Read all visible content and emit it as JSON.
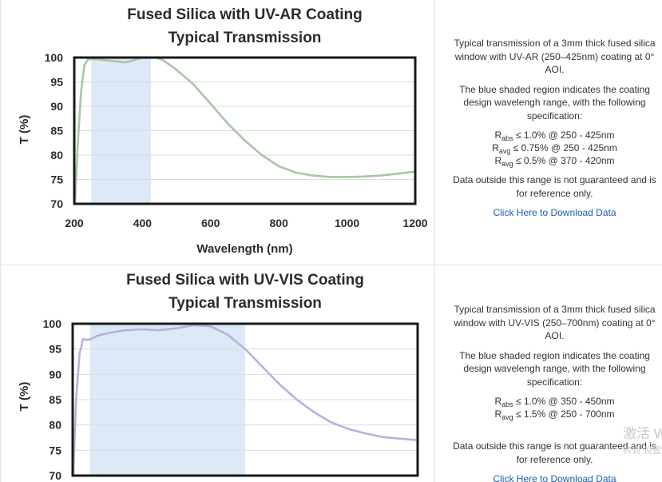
{
  "colors": {
    "shade": "#dce9f6",
    "curve_uvar": "#a9c6a5",
    "curve_uvvis": "#b7b2da",
    "grid": "#dcdcdc",
    "frame": "#1a1a1a",
    "link": "#1a5fa8"
  },
  "panels": [
    {
      "text": {
        "intro": "Typical transmission of a 3mm thick fused silica window with UV-AR (250–425nm) coating at 0° AOI.",
        "shade_note": "The blue shaded region indicates the coating design wavelengh range, with the following specification:",
        "specs": [
          {
            "sym": "R",
            "sub": "abs",
            "text": " ≤ 1.0% @ 250 - 425nm"
          },
          {
            "sym": "R",
            "sub": "avg",
            "text": " ≤ 0.75% @ 250 - 425nm"
          },
          {
            "sym": "R",
            "sub": "avg",
            "text": " ≤ 0.5% @ 370 - 420nm"
          }
        ],
        "disclaimer": "Data outside this range is not guaranteed and is for reference only.",
        "download": "Click Here to Download Data"
      }
    },
    {
      "text": {
        "intro": "Typical transmission of a 3mm thick fused silica window with UV-VIS (250–700nm) coating at 0° AOI.",
        "shade_note": "The blue shaded region indicates the coating design wavelengh range, with the following specification:",
        "specs": [
          {
            "sym": "R",
            "sub": "abs",
            "text": " ≤ 1.0% @ 350 - 450nm"
          },
          {
            "sym": "R",
            "sub": "avg",
            "text": " ≤ 1.5% @ 250 - 700nm"
          }
        ],
        "disclaimer": "Data outside this range is not guaranteed and is for reference only.",
        "download": "Click Here to Download Data"
      }
    }
  ],
  "watermark": {
    "line1": "激活 W",
    "line2": "转到\"设置\"以"
  },
  "chart_data": [
    {
      "type": "line",
      "title": [
        "Fused Silica with UV-AR Coating",
        "Typical Transmission"
      ],
      "xlabel": "Wavelength (nm)",
      "ylabel": "T (%)",
      "xlim": [
        200,
        1200
      ],
      "ylim": [
        70,
        100
      ],
      "xticks": [
        200,
        400,
        600,
        800,
        1000,
        1200
      ],
      "yticks": [
        70,
        75,
        80,
        85,
        90,
        95,
        100
      ],
      "grid": true,
      "shaded_range": [
        250,
        425
      ],
      "series": [
        {
          "x": [
            200,
            210,
            220,
            230,
            240,
            250,
            275,
            300,
            325,
            350,
            375,
            400,
            425,
            440,
            460,
            500,
            550,
            600,
            650,
            700,
            750,
            800,
            850,
            900,
            950,
            1000,
            1050,
            1100,
            1150,
            1200
          ],
          "y": [
            67,
            82,
            93,
            98.5,
            99.6,
            99.7,
            99.6,
            99.4,
            99.2,
            99.0,
            99.5,
            100.0,
            100.2,
            100.0,
            99.5,
            97.5,
            94.5,
            90.5,
            86.5,
            83.0,
            80.0,
            77.7,
            76.4,
            75.8,
            75.5,
            75.5,
            75.6,
            75.8,
            76.2,
            76.6
          ]
        }
      ]
    },
    {
      "type": "line",
      "title": [
        "Fused Silica with UV-VIS Coating",
        "Typical Transmission"
      ],
      "xlabel": "",
      "ylabel": "T (%)",
      "xlim": [
        200,
        1200
      ],
      "ylim": [
        70,
        100
      ],
      "xticks": [],
      "yticks": [
        70,
        75,
        80,
        85,
        90,
        95,
        100
      ],
      "grid": true,
      "shaded_range": [
        250,
        700
      ],
      "series": [
        {
          "x": [
            200,
            210,
            220,
            230,
            240,
            250,
            260,
            270,
            300,
            350,
            400,
            450,
            500,
            550,
            600,
            650,
            700,
            750,
            800,
            850,
            900,
            950,
            1000,
            1050,
            1100,
            1150,
            1200
          ],
          "y": [
            67,
            85,
            94,
            97.0,
            96.8,
            96.9,
            97.2,
            97.6,
            98.1,
            98.7,
            98.9,
            98.7,
            99.1,
            99.7,
            99.5,
            97.8,
            95.0,
            91.5,
            88.0,
            85.0,
            82.5,
            80.5,
            79.2,
            78.3,
            77.6,
            77.3,
            77.0
          ]
        }
      ]
    }
  ]
}
